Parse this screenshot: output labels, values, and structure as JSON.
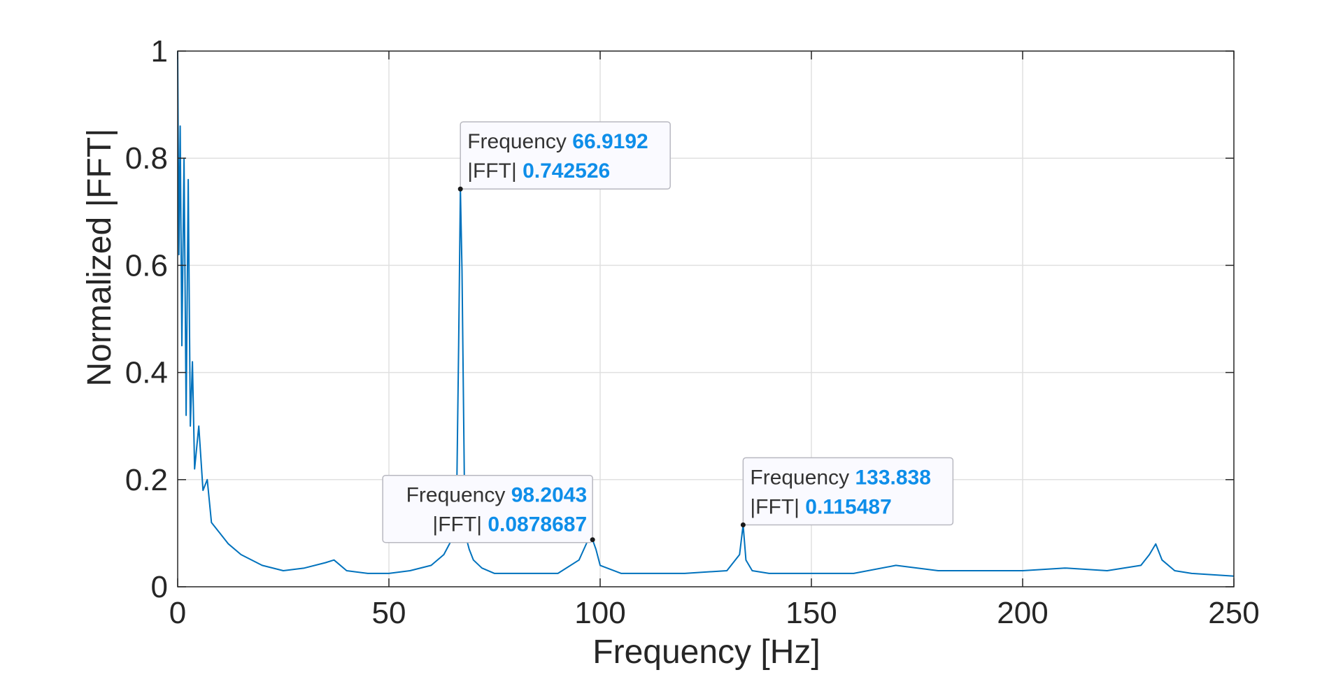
{
  "chart_data": {
    "type": "line",
    "title": "",
    "xlabel": "Frequency [Hz]",
    "ylabel": "Normalized |FFT|",
    "xlim": [
      0,
      250
    ],
    "ylim": [
      0,
      1
    ],
    "xticks": [
      0,
      50,
      100,
      150,
      200,
      250
    ],
    "yticks": [
      0,
      0.2,
      0.4,
      0.6,
      0.8,
      1
    ],
    "xtick_labels": [
      "0",
      "50",
      "100",
      "150",
      "200",
      "250"
    ],
    "ytick_labels": [
      "0",
      "0.2",
      "0.4",
      "0.6",
      "0.8",
      "1"
    ],
    "grid": true,
    "series": [
      {
        "name": "Normalized |FFT|",
        "color": "#0072BD",
        "description": "noisy spectrum with low-frequency decay and peaks",
        "x": [
          0,
          0.3,
          0.6,
          1,
          1.5,
          2,
          2.5,
          3,
          3.5,
          4,
          5,
          6,
          7,
          8,
          10,
          12,
          15,
          20,
          25,
          30,
          35,
          37,
          40,
          45,
          50,
          55,
          60,
          63,
          65,
          66,
          66.5,
          66.92,
          67.3,
          68,
          69,
          70,
          72,
          75,
          80,
          90,
          95,
          97,
          98.2,
          99,
          100,
          105,
          120,
          130,
          133,
          133.84,
          134.5,
          136,
          140,
          160,
          170,
          180,
          200,
          210,
          220,
          228,
          230,
          231.5,
          233,
          236,
          240,
          250
        ],
        "y": [
          1.0,
          0.62,
          0.86,
          0.45,
          0.8,
          0.32,
          0.76,
          0.3,
          0.42,
          0.22,
          0.3,
          0.18,
          0.2,
          0.12,
          0.1,
          0.08,
          0.06,
          0.04,
          0.03,
          0.035,
          0.045,
          0.05,
          0.03,
          0.025,
          0.025,
          0.03,
          0.04,
          0.06,
          0.09,
          0.14,
          0.45,
          0.742526,
          0.59,
          0.1,
          0.07,
          0.05,
          0.035,
          0.025,
          0.025,
          0.025,
          0.05,
          0.085,
          0.0878687,
          0.07,
          0.04,
          0.025,
          0.025,
          0.03,
          0.06,
          0.115487,
          0.05,
          0.03,
          0.025,
          0.025,
          0.04,
          0.03,
          0.03,
          0.035,
          0.03,
          0.04,
          0.06,
          0.08,
          0.05,
          0.03,
          0.025,
          0.02
        ]
      }
    ],
    "annotations": [
      {
        "freq_label": "Frequency",
        "freq_value": "66.9192",
        "fft_label": "|FFT|",
        "fft_value": "0.742526",
        "x": 66.9192,
        "y": 0.742526,
        "box": "right"
      },
      {
        "freq_label": "Frequency",
        "freq_value": "98.2043",
        "fft_label": "|FFT|",
        "fft_value": "0.0878687",
        "x": 98.2043,
        "y": 0.0878687,
        "box": "left"
      },
      {
        "freq_label": "Frequency",
        "freq_value": "133.838",
        "fft_label": "|FFT|",
        "fft_value": "0.115487",
        "x": 133.838,
        "y": 0.115487,
        "box": "right"
      }
    ],
    "colors": {
      "line": "#0072BD",
      "value_text": "#0E8EE9",
      "grid": "#E0E0E0",
      "axis": "#262626"
    }
  }
}
